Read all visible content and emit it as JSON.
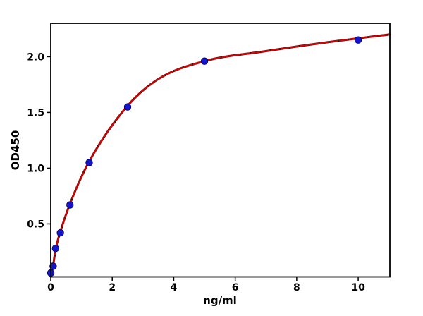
{
  "figure": {
    "background_color": "#ffffff",
    "plot_background_color": "#ffffff",
    "spine_color": "#000000"
  },
  "chart_data": {
    "type": "scatter",
    "title": "",
    "xlabel": "ng/ml",
    "ylabel": "OD450",
    "xlim": [
      0,
      11.03
    ],
    "ylim": [
      0.025,
      2.3
    ],
    "xticks": [
      0,
      2,
      4,
      6,
      8,
      10
    ],
    "yticks": [
      0.5,
      1.0,
      1.5,
      2.0
    ],
    "grid": false,
    "legend_position": "none",
    "series": [
      {
        "name": "standard-points",
        "kind": "scatter",
        "marker": "circle",
        "color": "#1414cc",
        "edge_color": "#000050",
        "points": [
          [
            0,
            0.06
          ],
          [
            0.078,
            0.12
          ],
          [
            0.156,
            0.28
          ],
          [
            0.313,
            0.42
          ],
          [
            0.625,
            0.67
          ],
          [
            1.25,
            1.05
          ],
          [
            2.5,
            1.55
          ],
          [
            5,
            1.96
          ],
          [
            10,
            2.15
          ]
        ]
      },
      {
        "name": "fit-curve",
        "kind": "line",
        "color": "#dd0000",
        "under_color": "#111111",
        "points": [
          [
            0,
            0.05
          ],
          [
            0.078,
            0.13
          ],
          [
            0.156,
            0.27
          ],
          [
            0.313,
            0.43
          ],
          [
            0.625,
            0.68
          ],
          [
            1.25,
            1.06
          ],
          [
            2.5,
            1.56
          ],
          [
            3.5,
            1.8
          ],
          [
            5,
            1.96
          ],
          [
            7,
            2.05
          ],
          [
            9,
            2.13
          ],
          [
            11.03,
            2.2
          ]
        ]
      }
    ]
  }
}
